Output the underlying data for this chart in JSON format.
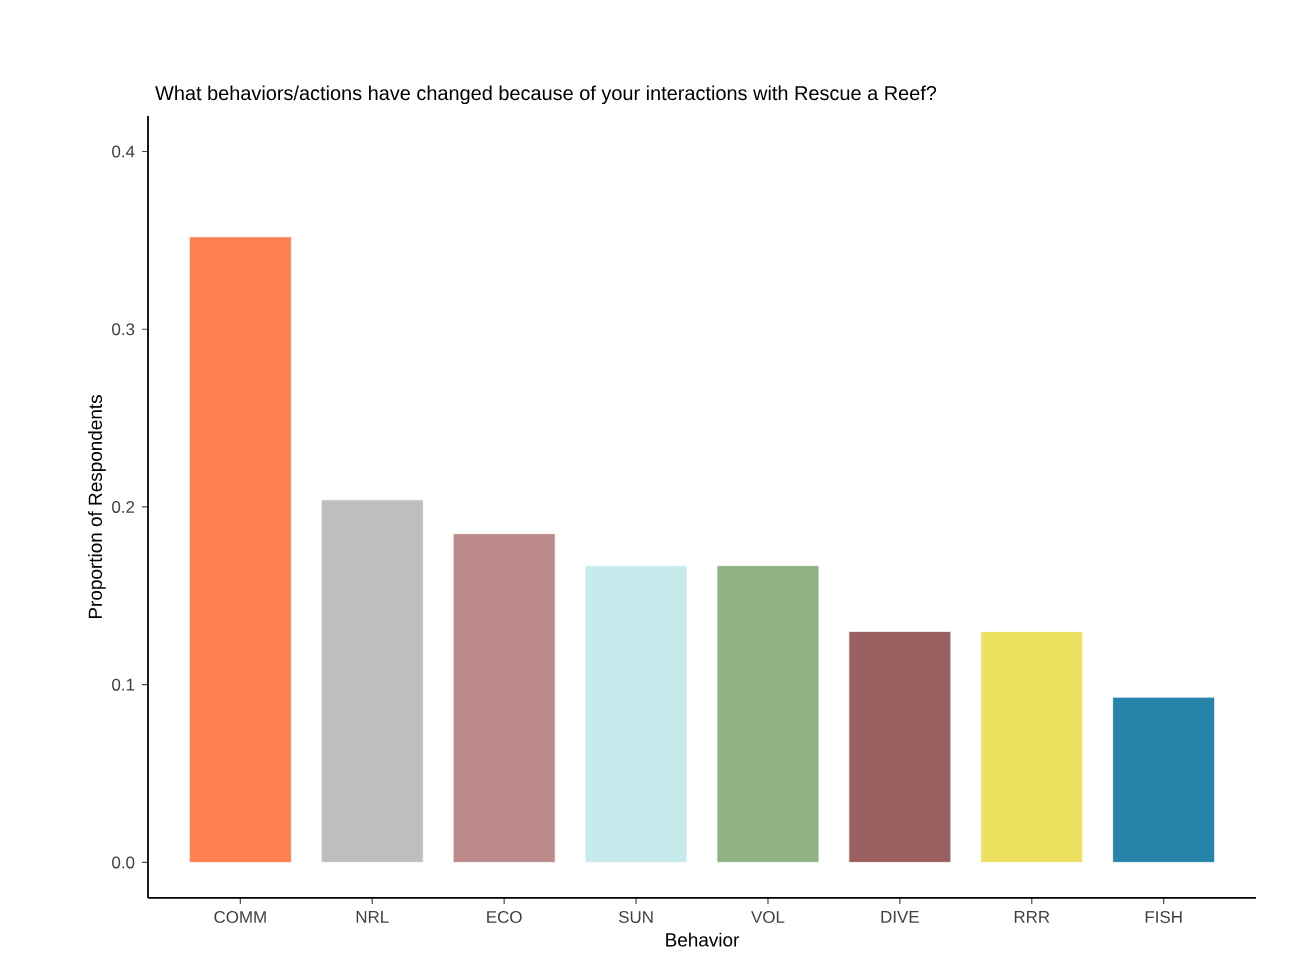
{
  "chart_data": {
    "type": "bar",
    "title": "What behaviors/actions have changed because of your interactions with Rescue a Reef?",
    "xlabel": "Behavior",
    "ylabel": "Proportion of Respondents",
    "categories": [
      "COMM",
      "NRL",
      "ECO",
      "SUN",
      "VOL",
      "DIVE",
      "RRR",
      "FISH"
    ],
    "values": [
      0.352,
      0.204,
      0.185,
      0.167,
      0.167,
      0.13,
      0.13,
      0.093
    ],
    "colors": [
      "#ff7f50",
      "#bebebe",
      "#bc8a8a",
      "#c7eaec",
      "#8fb283",
      "#9b5f5f",
      "#efe160",
      "#2683a9"
    ],
    "ylim": [
      -0.02,
      0.42
    ],
    "yticks": [
      {
        "value": 0,
        "label": "0.0"
      },
      {
        "value": 0.1,
        "label": "0.1"
      },
      {
        "value": 0.2,
        "label": "0.2"
      },
      {
        "value": 0.3,
        "label": "0.3"
      },
      {
        "value": 0.4,
        "label": "0.4"
      }
    ]
  }
}
